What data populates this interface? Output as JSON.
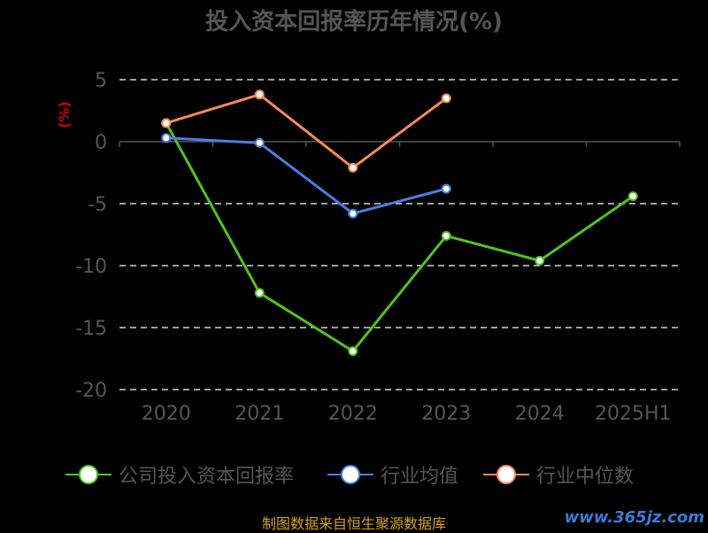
{
  "title": "投入资本回报率历年情况(%)",
  "unit_label": "(%)",
  "source": "制图数据来自恒生聚源数据库",
  "watermark": "www.365jz.com",
  "colors": {
    "company": "#52c41a",
    "industry_avg": "#4a7ee6",
    "industry_median": "#f58a55",
    "axis": "#555555",
    "grid": "#ffffff",
    "title": "#555555"
  },
  "chart_data": {
    "type": "line",
    "title": "投入资本回报率历年情况(%)",
    "ylabel": "(%)",
    "xlabel": "",
    "categories": [
      "2020",
      "2021",
      "2022",
      "2023",
      "2024",
      "2025H1"
    ],
    "ylim": [
      -20,
      5
    ],
    "yticks": [
      "5",
      "0",
      "-5",
      "-10",
      "-15",
      "-20"
    ],
    "grid": "dashed-horizontal",
    "legend_position": "bottom",
    "series": [
      {
        "name": "公司投入资本回报率",
        "color": "#52c41a",
        "values": [
          1.5,
          -12.2,
          -16.9,
          -7.6,
          -9.6,
          -4.4
        ]
      },
      {
        "name": "行业均值",
        "color": "#4a7ee6",
        "values": [
          0.3,
          -0.1,
          -5.8,
          -3.8,
          null,
          null
        ]
      },
      {
        "name": "行业中位数",
        "color": "#f58a55",
        "values": [
          1.5,
          3.8,
          -2.1,
          3.5,
          null,
          null
        ]
      }
    ]
  }
}
